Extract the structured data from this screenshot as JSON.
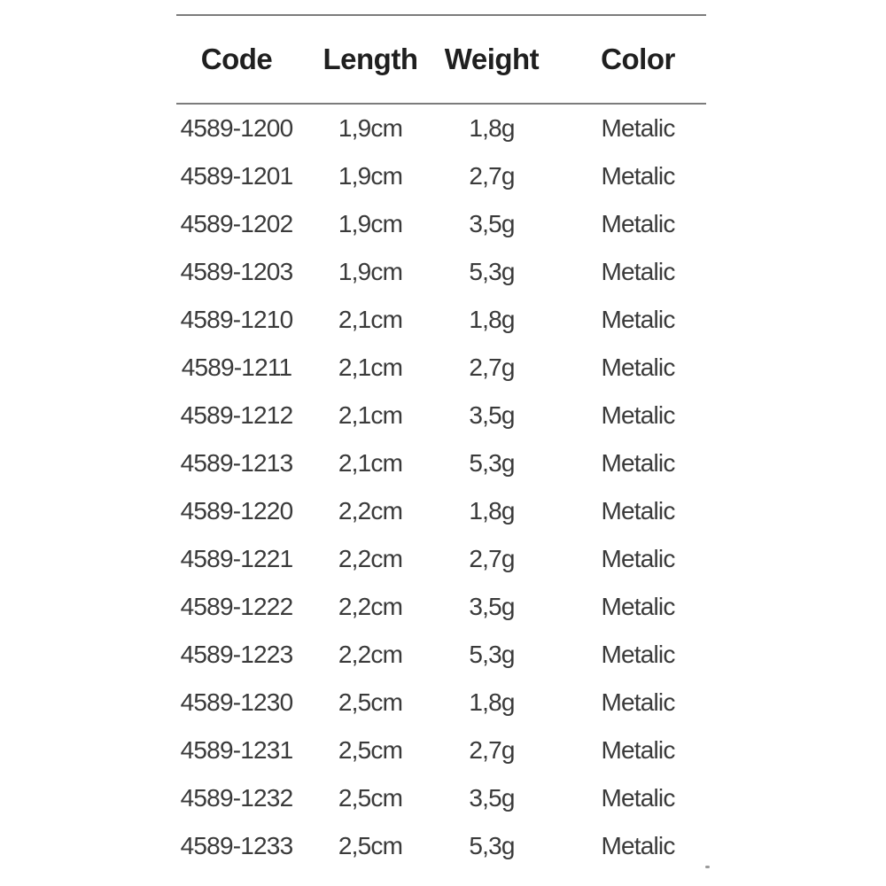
{
  "table": {
    "columns": [
      "Code",
      "Length",
      "Weight",
      "Color"
    ],
    "rows": [
      {
        "code": "4589-1200",
        "length": "1,9cm",
        "weight": "1,8g",
        "color": "Metalic"
      },
      {
        "code": "4589-1201",
        "length": "1,9cm",
        "weight": "2,7g",
        "color": "Metalic"
      },
      {
        "code": "4589-1202",
        "length": "1,9cm",
        "weight": "3,5g",
        "color": "Metalic"
      },
      {
        "code": "4589-1203",
        "length": "1,9cm",
        "weight": "5,3g",
        "color": "Metalic"
      },
      {
        "code": "4589-1210",
        "length": "2,1cm",
        "weight": "1,8g",
        "color": "Metalic"
      },
      {
        "code": "4589-1211",
        "length": "2,1cm",
        "weight": "2,7g",
        "color": "Metalic"
      },
      {
        "code": "4589-1212",
        "length": "2,1cm",
        "weight": "3,5g",
        "color": "Metalic"
      },
      {
        "code": "4589-1213",
        "length": "2,1cm",
        "weight": "5,3g",
        "color": "Metalic"
      },
      {
        "code": "4589-1220",
        "length": "2,2cm",
        "weight": "1,8g",
        "color": "Metalic"
      },
      {
        "code": "4589-1221",
        "length": "2,2cm",
        "weight": "2,7g",
        "color": "Metalic"
      },
      {
        "code": "4589-1222",
        "length": "2,2cm",
        "weight": "3,5g",
        "color": "Metalic"
      },
      {
        "code": "4589-1223",
        "length": "2,2cm",
        "weight": "5,3g",
        "color": "Metalic"
      },
      {
        "code": "4589-1230",
        "length": "2,5cm",
        "weight": "1,8g",
        "color": "Metalic"
      },
      {
        "code": "4589-1231",
        "length": "2,5cm",
        "weight": "2,7g",
        "color": "Metalic"
      },
      {
        "code": "4589-1232",
        "length": "2,5cm",
        "weight": "3,5g",
        "color": "Metalic"
      },
      {
        "code": "4589-1233",
        "length": "2,5cm",
        "weight": "5,3g",
        "color": "Metalic"
      }
    ],
    "colors": {
      "rule": "#7c7c7c",
      "header_text": "#1f1f1f",
      "body_text": "#3a3a3a",
      "background": "#ffffff"
    }
  }
}
